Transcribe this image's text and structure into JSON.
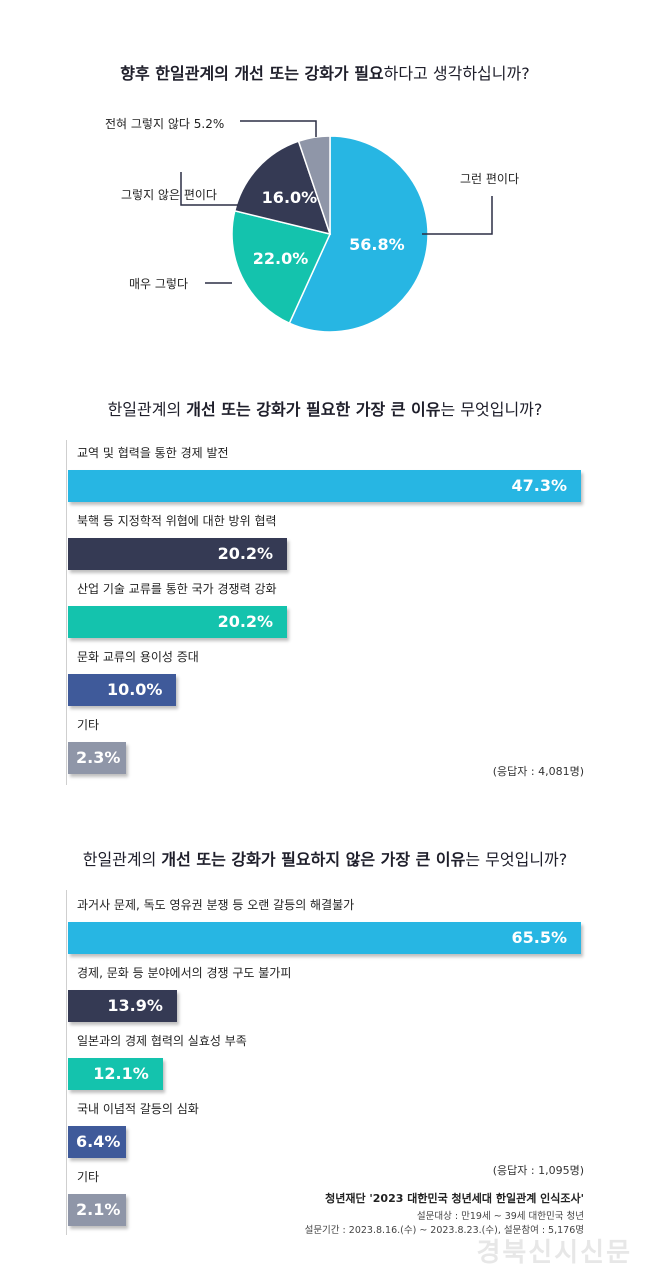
{
  "colors": {
    "cyan": "#27b6e3",
    "navy": "#353a54",
    "teal": "#14c3ad",
    "blue": "#3f5a9a",
    "gray": "#8f96a8"
  },
  "q1": {
    "title_bold": "향후 한일관계의 개선 또는 강화가 필요",
    "title_rest": "하다고 생각하십니까?"
  },
  "chart_data": [
    {
      "type": "pie",
      "title": "향후 한일관계의 개선 또는 강화가 필요하다고 생각하십니까?",
      "slices": [
        {
          "label": "그런 편이다",
          "value": 56.8,
          "value_text": "56.8%",
          "color": "#27b6e3"
        },
        {
          "label": "매우 그렇다",
          "value": 22.0,
          "value_text": "22.0%",
          "color": "#14c3ad"
        },
        {
          "label": "그렇지 않은 편이다",
          "value": 16.0,
          "value_text": "16.0%",
          "color": "#353a54"
        },
        {
          "label": "전혀 그렇지 않다",
          "value": 5.2,
          "value_text": "5.2%",
          "color": "#8f96a8"
        }
      ]
    },
    {
      "type": "bar",
      "title": "한일관계의 개선 또는 강화가 필요한 가장 큰 이유는 무엇입니까?",
      "categories": [
        "교역 및 협력을 통한 경제 발전",
        "북핵 등 지정학적 위협에 대한 방위 협력",
        "산업 기술 교류를 통한 국가 경쟁력 강화",
        "문화 교류의 용이성 증대",
        "기타"
      ],
      "values": [
        47.3,
        20.2,
        20.2,
        10.0,
        2.3
      ],
      "value_texts": [
        "47.3%",
        "20.2%",
        "20.2%",
        "10.0%",
        "2.3%"
      ],
      "colors": [
        "#27b6e3",
        "#353a54",
        "#14c3ad",
        "#3f5a9a",
        "#8f96a8"
      ],
      "note": "(응답자 : 4,081명)"
    },
    {
      "type": "bar",
      "title": "한일관계의 개선 또는 강화가 필요하지 않은 가장 큰 이유는 무엇입니까?",
      "categories": [
        "과거사 문제, 독도 영유권 분쟁 등 오랜 갈등의 해결불가",
        "경제, 문화 등 분야에서의 경쟁 구도 불가피",
        "일본과의 경제 협력의 실효성 부족",
        "국내 이념적 갈등의 심화",
        "기타"
      ],
      "values": [
        65.5,
        13.9,
        12.1,
        6.4,
        2.1
      ],
      "value_texts": [
        "65.5%",
        "13.9%",
        "12.1%",
        "6.4%",
        "2.1%"
      ],
      "colors": [
        "#27b6e3",
        "#353a54",
        "#14c3ad",
        "#3f5a9a",
        "#8f96a8"
      ],
      "note": "(응답자 : 1,095명)"
    }
  ],
  "q2": {
    "title_a": "한일관계의 ",
    "title_b": "개선 또는 강화가 필요한 가장 큰 이유",
    "title_c": "는 무엇입니까?"
  },
  "q3": {
    "title_a": "한일관계의 ",
    "title_b": "개선 또는 강화가 필요하지 않은 가장 큰 이유",
    "title_c": "는 무엇입니까?"
  },
  "footer": {
    "source": "청년재단 '2023 대한민국 청년세대 한일관계 인식조사'",
    "target": "설문대상 : 만19세 ~ 39세 대한민국 청년",
    "period": "설문기간 : 2023.8.16.(수) ~ 2023.8.23.(수), 설문참여 : 5,176명"
  },
  "watermark": "경북신시신문"
}
